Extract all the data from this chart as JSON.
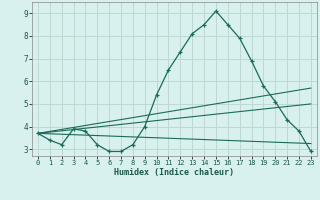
{
  "xlabel": "Humidex (Indice chaleur)",
  "bg_color": "#d8f0ee",
  "grid_color": "#c0d8d4",
  "line_color": "#1a6b5a",
  "xlim": [
    -0.5,
    23.5
  ],
  "ylim": [
    2.7,
    9.5
  ],
  "yticks": [
    3,
    4,
    5,
    6,
    7,
    8,
    9
  ],
  "xticks": [
    0,
    1,
    2,
    3,
    4,
    5,
    6,
    7,
    8,
    9,
    10,
    11,
    12,
    13,
    14,
    15,
    16,
    17,
    18,
    19,
    20,
    21,
    22,
    23
  ],
  "series1_x": [
    0,
    1,
    2,
    3,
    4,
    5,
    6,
    7,
    8,
    9,
    10,
    11,
    12,
    13,
    14,
    15,
    16,
    17,
    18,
    19,
    20,
    21,
    22,
    23
  ],
  "series1_y": [
    3.7,
    3.4,
    3.2,
    3.9,
    3.8,
    3.2,
    2.9,
    2.9,
    3.2,
    4.0,
    5.4,
    6.5,
    7.3,
    8.1,
    8.5,
    9.1,
    8.5,
    7.9,
    6.9,
    5.8,
    5.1,
    4.3,
    3.8,
    2.9
  ],
  "series2_x": [
    0,
    23
  ],
  "series2_y": [
    3.7,
    5.7
  ],
  "series3_x": [
    0,
    23
  ],
  "series3_y": [
    3.7,
    5.0
  ],
  "series4_x": [
    0,
    23
  ],
  "series4_y": [
    3.7,
    3.25
  ]
}
